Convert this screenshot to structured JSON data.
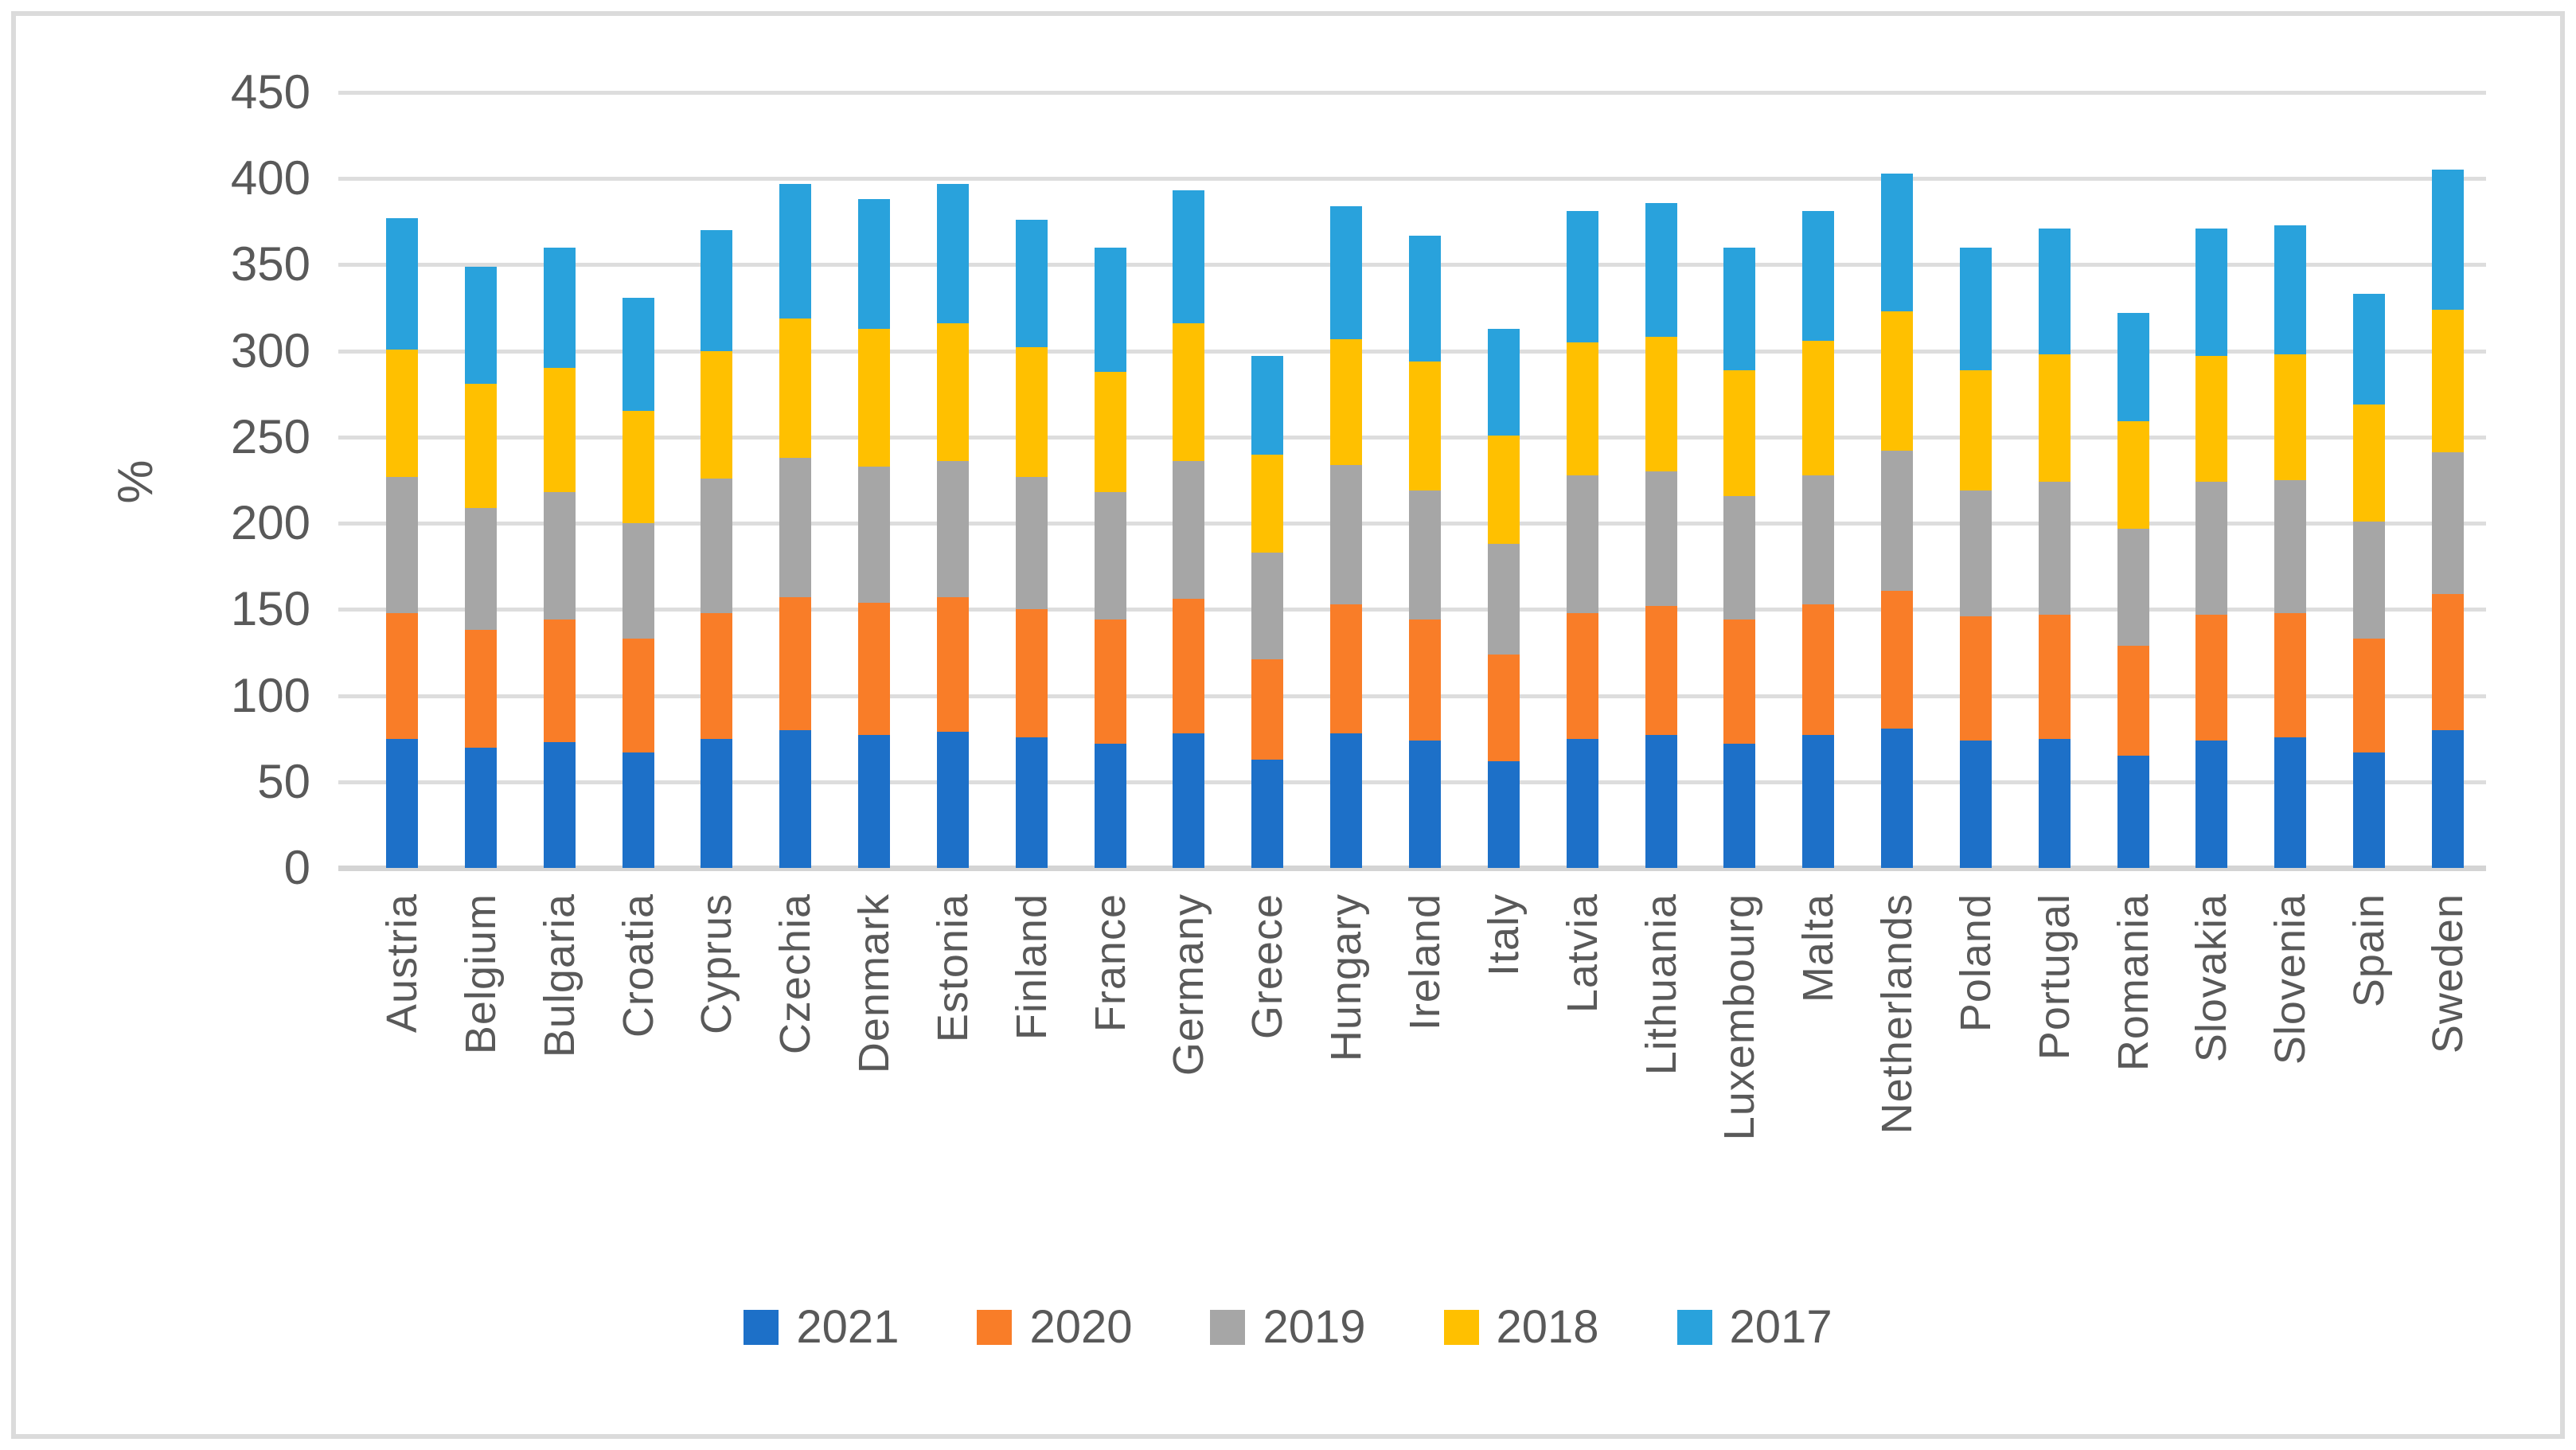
{
  "chart_data": {
    "type": "bar",
    "stacked": true,
    "title": "",
    "ylabel": "%",
    "xlabel": "",
    "ylim": [
      0,
      450
    ],
    "ytick_step": 50,
    "grid": true,
    "legend_position": "bottom",
    "categories": [
      "Austria",
      "Belgium",
      "Bulgaria",
      "Croatia",
      "Cyprus",
      "Czechia",
      "Denmark",
      "Estonia",
      "Finland",
      "France",
      "Germany",
      "Greece",
      "Hungary",
      "Ireland",
      "Italy",
      "Latvia",
      "Lithuania",
      "Luxembourg",
      "Malta",
      "Netherlands",
      "Poland",
      "Portugal",
      "Romania",
      "Slovakia",
      "Slovenia",
      "Spain",
      "Sweden"
    ],
    "series": [
      {
        "name": "2021",
        "color": "#1D70C8",
        "values": [
          75,
          70,
          73,
          67,
          75,
          80,
          77,
          79,
          76,
          72,
          78,
          63,
          78,
          74,
          62,
          75,
          77,
          72,
          77,
          81,
          74,
          75,
          65,
          74,
          76,
          67,
          80
        ]
      },
      {
        "name": "2020",
        "color": "#F97D28",
        "values": [
          73,
          68,
          71,
          66,
          73,
          77,
          77,
          78,
          74,
          72,
          78,
          58,
          75,
          70,
          62,
          73,
          75,
          72,
          76,
          80,
          72,
          72,
          64,
          73,
          72,
          66,
          79
        ]
      },
      {
        "name": "2019",
        "color": "#A6A6A6",
        "values": [
          79,
          71,
          74,
          67,
          78,
          81,
          79,
          79,
          77,
          74,
          80,
          62,
          81,
          75,
          64,
          80,
          78,
          72,
          75,
          81,
          73,
          77,
          68,
          77,
          77,
          68,
          82
        ]
      },
      {
        "name": "2018",
        "color": "#FFC000",
        "values": [
          74,
          72,
          72,
          65,
          74,
          81,
          80,
          80,
          75,
          70,
          80,
          57,
          73,
          75,
          63,
          77,
          78,
          73,
          78,
          81,
          70,
          74,
          62,
          73,
          73,
          68,
          83
        ]
      },
      {
        "name": "2017",
        "color": "#29A2DC",
        "values": [
          76,
          68,
          70,
          66,
          70,
          78,
          75,
          81,
          74,
          72,
          77,
          57,
          77,
          73,
          62,
          76,
          78,
          71,
          75,
          80,
          71,
          73,
          63,
          74,
          75,
          64,
          81
        ]
      }
    ],
    "totals": [
      377,
      349,
      360,
      331,
      370,
      397,
      388,
      397,
      376,
      360,
      393,
      297,
      384,
      367,
      313,
      381,
      386,
      360,
      381,
      403,
      360,
      371,
      322,
      371,
      373,
      333,
      405
    ]
  },
  "frame": {
    "border_color": "#DBDBDB"
  },
  "axis": {
    "label_color": "#595959",
    "gridline_color": "#DDDDDD"
  }
}
